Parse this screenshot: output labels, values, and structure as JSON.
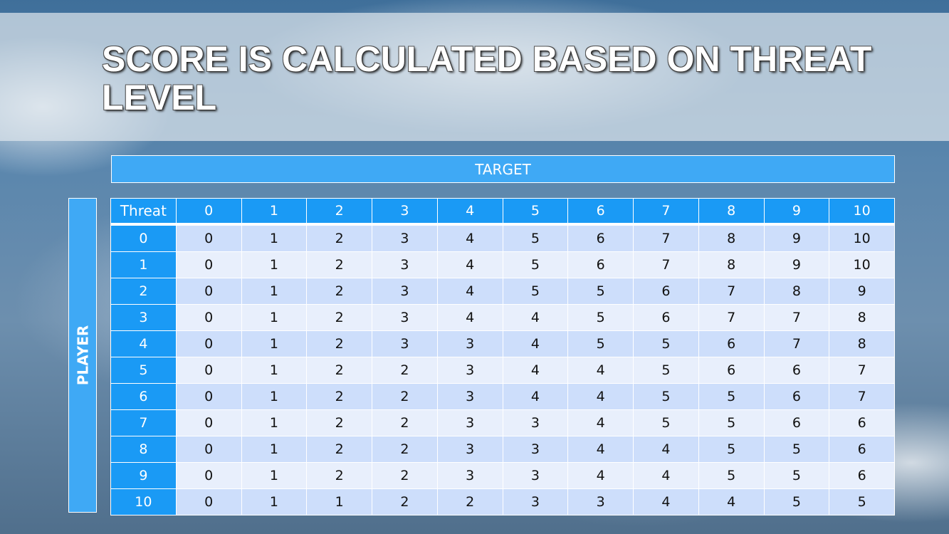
{
  "title": "SCORE IS CALCULATED BASED ON THREAT LEVEL",
  "target_label": "TARGET",
  "player_label": "PLAYER",
  "table": {
    "corner": "Threat",
    "columns": [
      "0",
      "1",
      "2",
      "3",
      "4",
      "5",
      "6",
      "7",
      "8",
      "9",
      "10"
    ],
    "rows": [
      {
        "label": "0",
        "cells": [
          "0",
          "1",
          "2",
          "3",
          "4",
          "5",
          "6",
          "7",
          "8",
          "9",
          "10"
        ]
      },
      {
        "label": "1",
        "cells": [
          "0",
          "1",
          "2",
          "3",
          "4",
          "5",
          "6",
          "7",
          "8",
          "9",
          "10"
        ]
      },
      {
        "label": "2",
        "cells": [
          "0",
          "1",
          "2",
          "3",
          "4",
          "5",
          "5",
          "6",
          "7",
          "8",
          "9"
        ]
      },
      {
        "label": "3",
        "cells": [
          "0",
          "1",
          "2",
          "3",
          "4",
          "4",
          "5",
          "6",
          "7",
          "7",
          "8"
        ]
      },
      {
        "label": "4",
        "cells": [
          "0",
          "1",
          "2",
          "3",
          "3",
          "4",
          "5",
          "5",
          "6",
          "7",
          "8"
        ]
      },
      {
        "label": "5",
        "cells": [
          "0",
          "1",
          "2",
          "2",
          "3",
          "4",
          "4",
          "5",
          "6",
          "6",
          "7"
        ]
      },
      {
        "label": "6",
        "cells": [
          "0",
          "1",
          "2",
          "2",
          "3",
          "4",
          "4",
          "5",
          "5",
          "6",
          "7"
        ]
      },
      {
        "label": "7",
        "cells": [
          "0",
          "1",
          "2",
          "2",
          "3",
          "3",
          "4",
          "5",
          "5",
          "6",
          "6"
        ]
      },
      {
        "label": "8",
        "cells": [
          "0",
          "1",
          "2",
          "2",
          "3",
          "3",
          "4",
          "4",
          "5",
          "5",
          "6"
        ]
      },
      {
        "label": "9",
        "cells": [
          "0",
          "1",
          "2",
          "2",
          "3",
          "3",
          "4",
          "4",
          "5",
          "5",
          "6"
        ]
      },
      {
        "label": "10",
        "cells": [
          "0",
          "1",
          "1",
          "2",
          "2",
          "3",
          "3",
          "4",
          "4",
          "5",
          "5"
        ]
      }
    ]
  },
  "colors": {
    "header_blue": "#1a9af5",
    "bar_blue": "#3fa9f5",
    "row_dark": "#cddefb",
    "row_light": "#e8effc"
  }
}
